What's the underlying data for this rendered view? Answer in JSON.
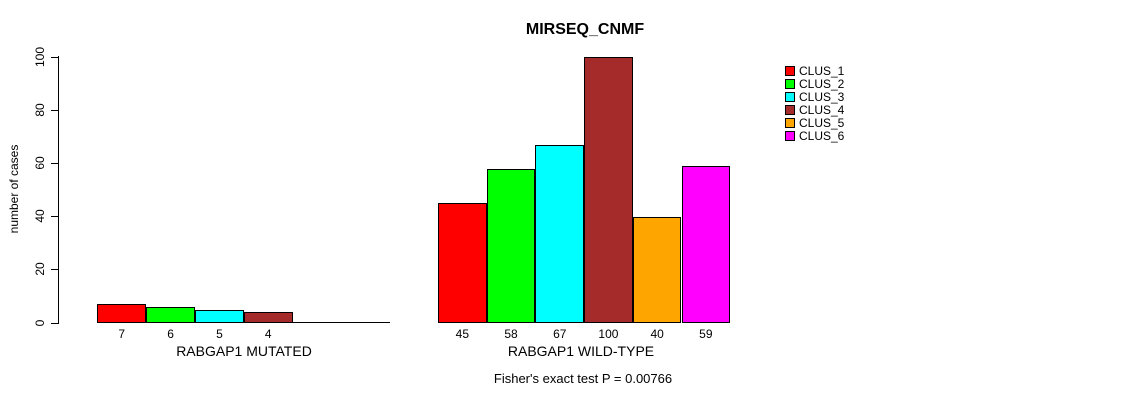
{
  "chart_data": {
    "type": "bar",
    "title": "MIRSEQ_CNMF",
    "ylabel": "number of cases",
    "ylim": [
      0,
      100
    ],
    "yticks": [
      0,
      20,
      40,
      60,
      80,
      100
    ],
    "grid": false,
    "legend": {
      "position": "right",
      "entries": [
        {
          "label": "CLUS_1",
          "color": "#FF0000"
        },
        {
          "label": "CLUS_2",
          "color": "#00FF00"
        },
        {
          "label": "CLUS_3",
          "color": "#00FFFF"
        },
        {
          "label": "CLUS_4",
          "color": "#A52A2A"
        },
        {
          "label": "CLUS_5",
          "color": "#FFA500"
        },
        {
          "label": "CLUS_6",
          "color": "#FF00FF"
        }
      ]
    },
    "groups": [
      {
        "xlabel": "RABGAP1 MUTATED",
        "categories": [
          "CLUS_1",
          "CLUS_2",
          "CLUS_3",
          "CLUS_4",
          "CLUS_5",
          "CLUS_6"
        ],
        "values": [
          7,
          6,
          5,
          4,
          0,
          0
        ],
        "bar_labels": [
          "7",
          "6",
          "5",
          "4",
          "",
          ""
        ]
      },
      {
        "xlabel": "RABGAP1 WILD-TYPE",
        "categories": [
          "CLUS_1",
          "CLUS_2",
          "CLUS_3",
          "CLUS_4",
          "CLUS_5",
          "CLUS_6"
        ],
        "values": [
          45,
          58,
          67,
          100,
          40,
          59
        ],
        "bar_labels": [
          "45",
          "58",
          "67",
          "100",
          "40",
          "59"
        ]
      }
    ],
    "annotation": "Fisher's exact test P = 0.00766",
    "axis_color": "#000000",
    "background_color": "#FFFFFF"
  }
}
